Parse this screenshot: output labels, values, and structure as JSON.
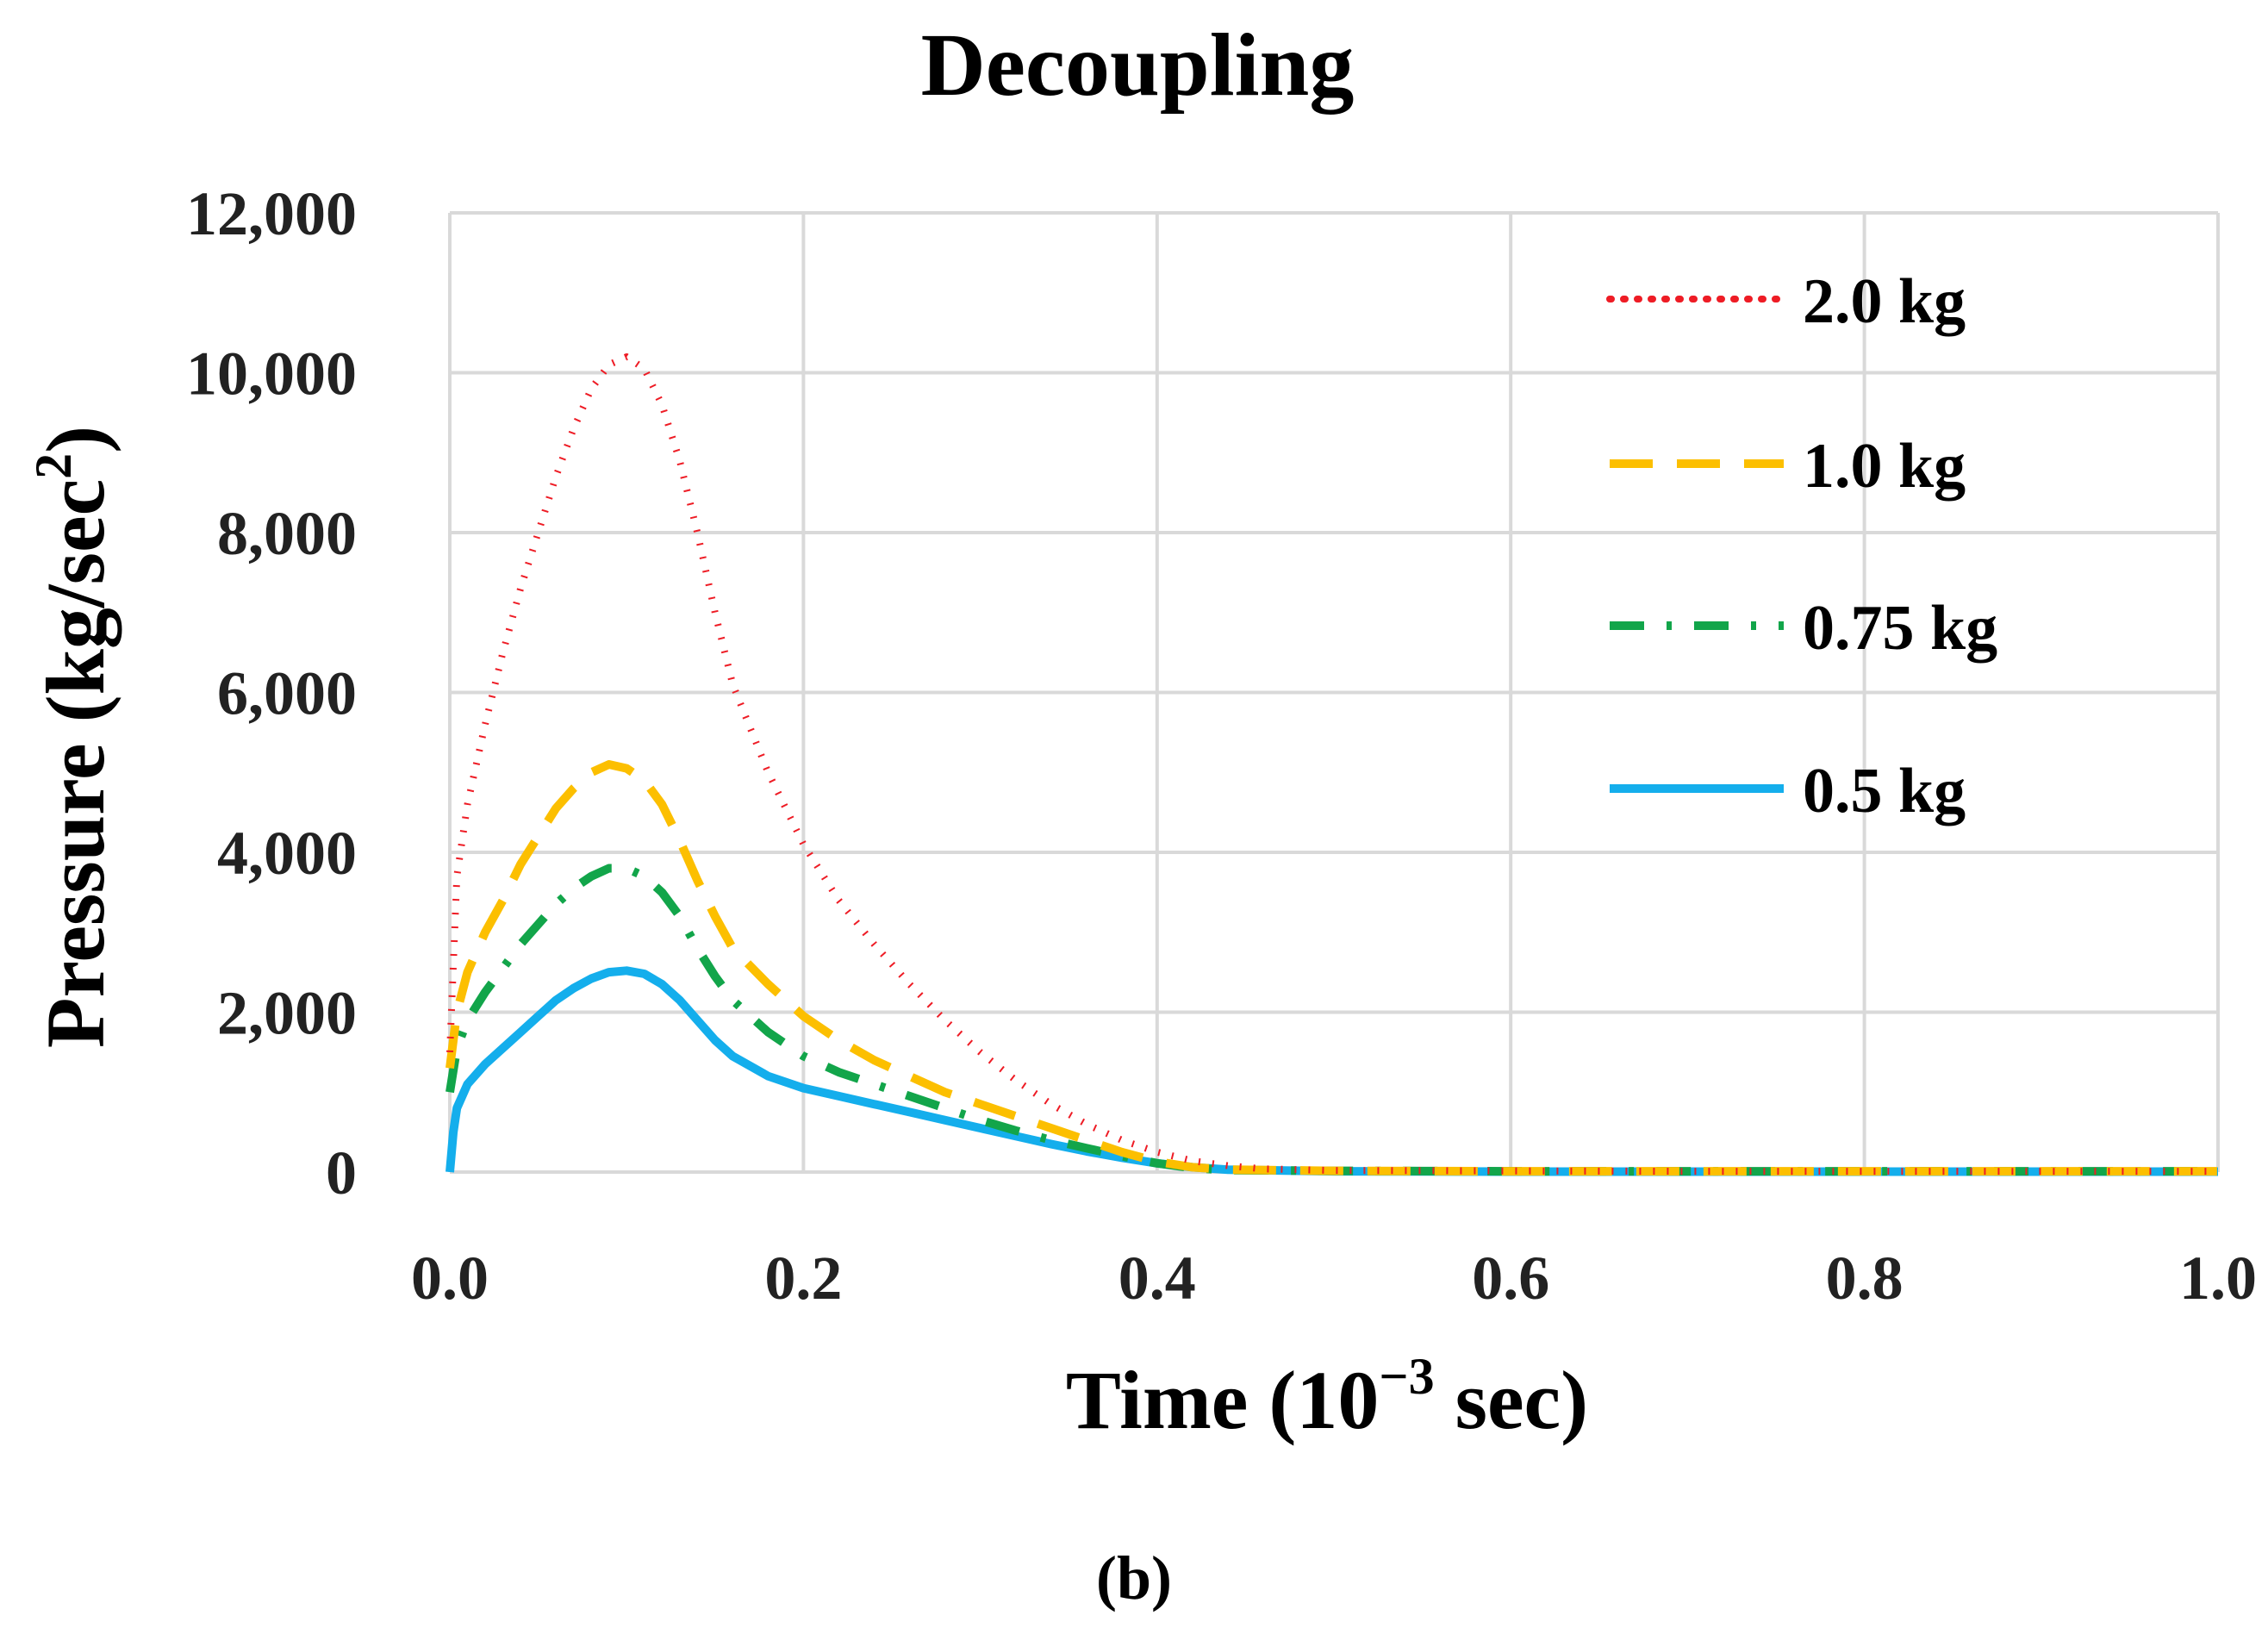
{
  "chart_data": {
    "type": "line",
    "title": "Decoupling",
    "xlabel": "Time (10",
    "xlabel_exp": "−3",
    "xlabel_unit": " sec)",
    "ylabel": "Pressure (kg/sec",
    "ylabel_exp": "2",
    "ylabel_end": ")",
    "xlim": [
      0,
      1.0
    ],
    "ylim": [
      0,
      12000
    ],
    "xticks": [
      0.0,
      0.2,
      0.4,
      0.6,
      0.8,
      1.0
    ],
    "xtick_labels": [
      "0.0",
      "0.2",
      "0.4",
      "0.6",
      "0.8",
      "1.0"
    ],
    "yticks": [
      0,
      2000,
      4000,
      6000,
      8000,
      10000,
      12000
    ],
    "ytick_labels": [
      "0",
      "2,000",
      "4,000",
      "6,000",
      "8,000",
      "10,000",
      "12,000"
    ],
    "grid": true,
    "legend_position": "top-right",
    "panel_label": "(b)",
    "series": [
      {
        "name": "2.0 kg",
        "color": "#ee1c25",
        "style": "dotted",
        "x": [
          0.0,
          0.004,
          0.01,
          0.02,
          0.03,
          0.04,
          0.05,
          0.06,
          0.07,
          0.08,
          0.09,
          0.1,
          0.11,
          0.12,
          0.13,
          0.14,
          0.15,
          0.16,
          0.18,
          0.2,
          0.22,
          0.24,
          0.26,
          0.28,
          0.3,
          0.32,
          0.34,
          0.36,
          0.38,
          0.4,
          0.42,
          0.44,
          0.46,
          0.5,
          0.6,
          0.7,
          0.8,
          0.9,
          1.0
        ],
        "y": [
          1500,
          3700,
          4600,
          5600,
          6500,
          7300,
          8000,
          8700,
          9300,
          9800,
          10100,
          10200,
          10050,
          9600,
          8900,
          8000,
          7000,
          6100,
          5000,
          4100,
          3400,
          2850,
          2350,
          1900,
          1500,
          1150,
          850,
          600,
          400,
          250,
          140,
          80,
          40,
          20,
          15,
          10,
          10,
          10,
          10
        ]
      },
      {
        "name": "1.0 kg",
        "color": "#fcbf00",
        "style": "dashed",
        "x": [
          0.0,
          0.004,
          0.01,
          0.02,
          0.03,
          0.04,
          0.05,
          0.06,
          0.07,
          0.08,
          0.09,
          0.1,
          0.11,
          0.12,
          0.13,
          0.14,
          0.15,
          0.16,
          0.18,
          0.2,
          0.22,
          0.24,
          0.26,
          0.28,
          0.3,
          0.32,
          0.34,
          0.36,
          0.38,
          0.4,
          0.42,
          0.44,
          0.5,
          0.6,
          0.7,
          0.8,
          0.9,
          1.0
        ],
        "y": [
          1300,
          2000,
          2500,
          3000,
          3400,
          3850,
          4200,
          4550,
          4800,
          5000,
          5100,
          5050,
          4900,
          4600,
          4150,
          3650,
          3200,
          2800,
          2350,
          1950,
          1650,
          1400,
          1200,
          1000,
          850,
          700,
          550,
          400,
          250,
          130,
          60,
          30,
          15,
          10,
          10,
          10,
          10,
          10
        ]
      },
      {
        "name": "0.75 kg",
        "color": "#12a54a",
        "style": "dashdot",
        "x": [
          0.0,
          0.004,
          0.01,
          0.02,
          0.03,
          0.04,
          0.05,
          0.06,
          0.07,
          0.08,
          0.09,
          0.1,
          0.11,
          0.12,
          0.13,
          0.14,
          0.15,
          0.16,
          0.18,
          0.2,
          0.22,
          0.24,
          0.26,
          0.28,
          0.3,
          0.32,
          0.34,
          0.36,
          0.38,
          0.4,
          0.42,
          0.44,
          0.5,
          0.6,
          0.7,
          0.8,
          0.9,
          1.0
        ],
        "y": [
          1000,
          1550,
          1900,
          2250,
          2550,
          2850,
          3100,
          3350,
          3550,
          3700,
          3800,
          3800,
          3700,
          3500,
          3200,
          2800,
          2450,
          2150,
          1750,
          1450,
          1250,
          1100,
          950,
          800,
          650,
          520,
          400,
          300,
          200,
          110,
          50,
          25,
          15,
          10,
          10,
          10,
          10,
          10
        ]
      },
      {
        "name": "0.5 kg",
        "color": "#14aeec",
        "style": "solid",
        "x": [
          0.0,
          0.002,
          0.004,
          0.01,
          0.02,
          0.03,
          0.04,
          0.05,
          0.06,
          0.07,
          0.08,
          0.09,
          0.1,
          0.11,
          0.12,
          0.13,
          0.14,
          0.15,
          0.16,
          0.18,
          0.2,
          0.22,
          0.24,
          0.26,
          0.28,
          0.3,
          0.32,
          0.34,
          0.36,
          0.38,
          0.4,
          0.42,
          0.44,
          0.5,
          0.6,
          0.7,
          0.8,
          0.9,
          1.0
        ],
        "y": [
          0,
          500,
          800,
          1100,
          1350,
          1550,
          1750,
          1950,
          2150,
          2300,
          2420,
          2500,
          2520,
          2480,
          2350,
          2150,
          1900,
          1650,
          1450,
          1200,
          1050,
          950,
          850,
          750,
          650,
          550,
          450,
          350,
          260,
          180,
          110,
          60,
          30,
          10,
          5,
          5,
          5,
          5,
          5
        ]
      }
    ]
  }
}
